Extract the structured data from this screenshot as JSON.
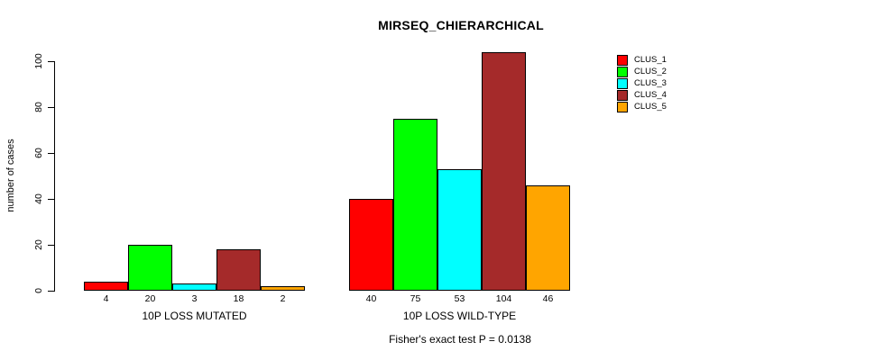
{
  "figure": {
    "title": "MIRSEQ_CHIERARCHICAL",
    "ylabel": "number of cases",
    "footer": "Fisher's exact test P = 0.0138"
  },
  "chart_data": {
    "type": "bar",
    "title": "MIRSEQ_CHIERARCHICAL",
    "xlabel": "",
    "ylabel": "number of cases",
    "ylim": [
      0,
      100
    ],
    "yticks": [
      0,
      20,
      40,
      60,
      80,
      100
    ],
    "grid": false,
    "legend_position": "right",
    "categories": [
      "10P LOSS MUTATED",
      "10P LOSS WILD-TYPE"
    ],
    "series": [
      {
        "name": "CLUS_1",
        "color": "#FF0000",
        "values": [
          4,
          40
        ]
      },
      {
        "name": "CLUS_2",
        "color": "#00FF00",
        "values": [
          20,
          75
        ]
      },
      {
        "name": "CLUS_3",
        "color": "#00FFFF",
        "values": [
          3,
          53
        ]
      },
      {
        "name": "CLUS_4",
        "color": "#A52A2A",
        "values": [
          18,
          104
        ]
      },
      {
        "name": "CLUS_5",
        "color": "#FFA500",
        "values": [
          2,
          46
        ]
      }
    ],
    "bar_value_labels": [
      [
        4,
        20,
        3,
        18,
        2
      ],
      [
        40,
        75,
        53,
        104,
        46
      ]
    ],
    "annotation": "Fisher's exact test P = 0.0138"
  }
}
